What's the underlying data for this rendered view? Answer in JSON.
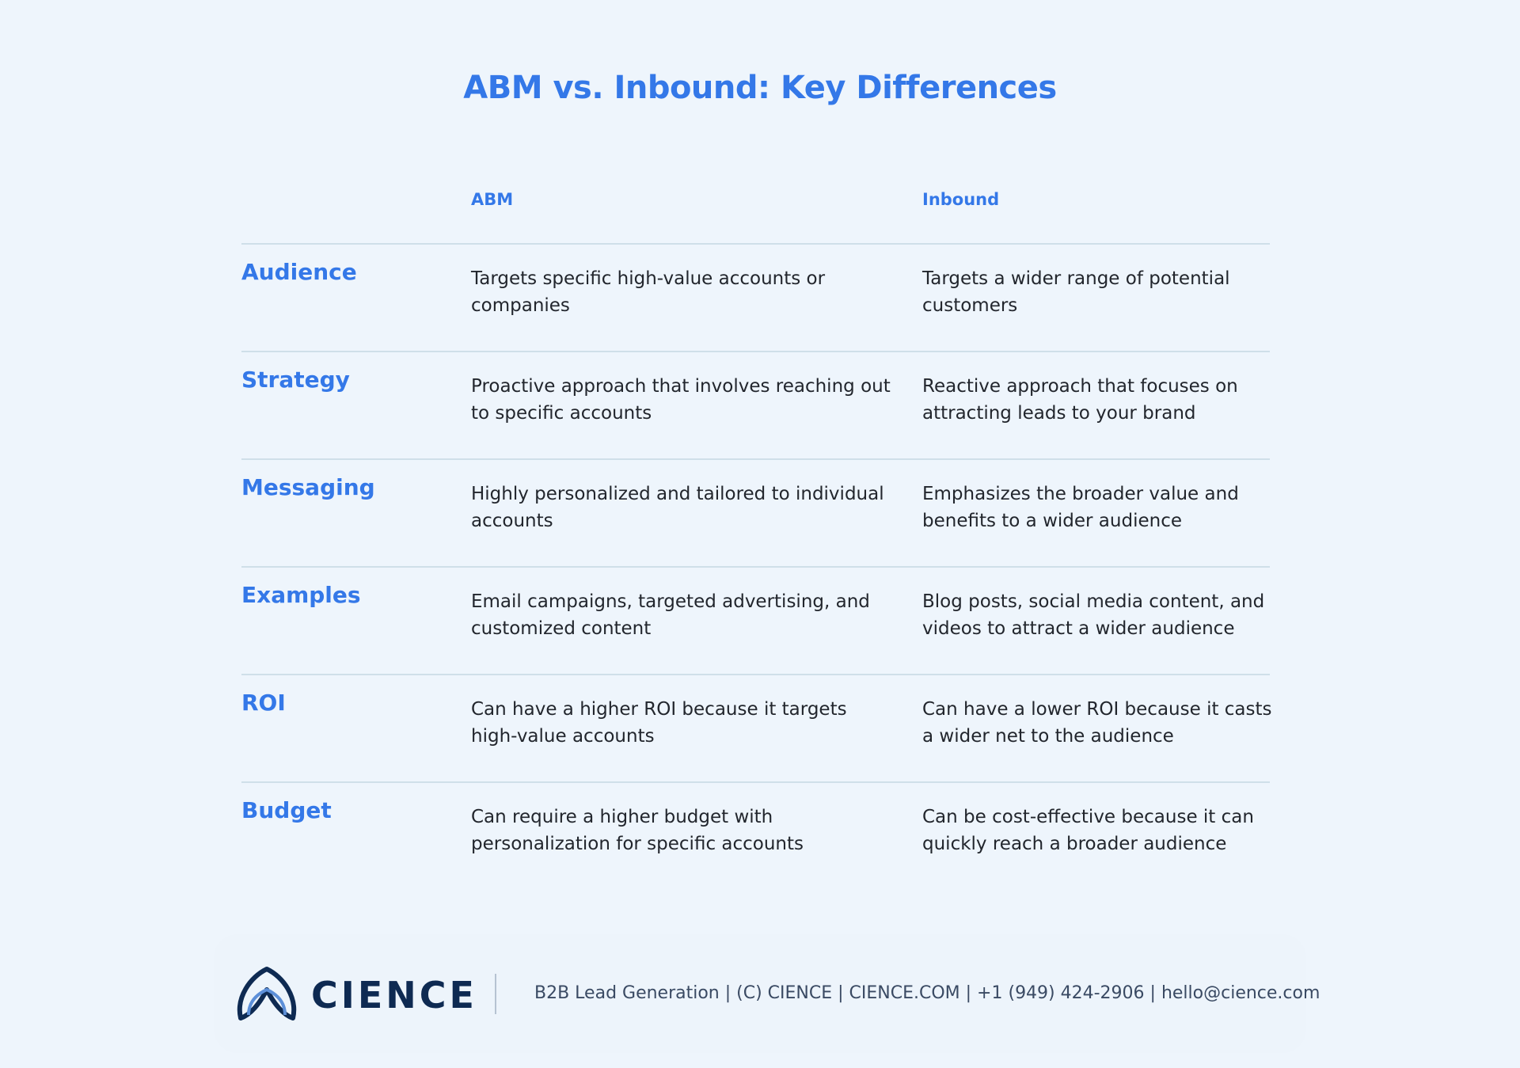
{
  "header": {
    "title": "ABM vs. Inbound: Key Differences"
  },
  "table": {
    "columns": [
      "ABM",
      "Inbound"
    ],
    "rows": [
      {
        "label": "Audience",
        "abm": "Targets specific high-value accounts or companies",
        "inbound": "Targets a wider range of potential customers"
      },
      {
        "label": "Strategy",
        "abm": "Proactive approach that involves reaching out to specific accounts",
        "inbound": "Reactive approach that focuses on attracting leads to your brand"
      },
      {
        "label": "Messaging",
        "abm": "Highly personalized and tailored to individual accounts",
        "inbound": "Emphasizes the broader value and benefits to a wider audience"
      },
      {
        "label": "Examples",
        "abm": "Email campaigns, targeted advertising, and customized content",
        "inbound": "Blog posts, social media content, and videos to attract a wider audience"
      },
      {
        "label": "ROI",
        "abm": "Can have a higher ROI because it targets high-value accounts",
        "inbound": "Can have a lower ROI because it casts a wider net to the audience"
      },
      {
        "label": "Budget",
        "abm": "Can require a higher budget with personalization for specific accounts",
        "inbound": "Can be cost-effective because it can quickly reach a broader audience"
      }
    ]
  },
  "footer": {
    "brand": "CIENCE",
    "text": "B2B Lead Generation | (C) CIENCE | CIENCE.COM | +1 (949) 424-2906 | hello@cience.com"
  }
}
